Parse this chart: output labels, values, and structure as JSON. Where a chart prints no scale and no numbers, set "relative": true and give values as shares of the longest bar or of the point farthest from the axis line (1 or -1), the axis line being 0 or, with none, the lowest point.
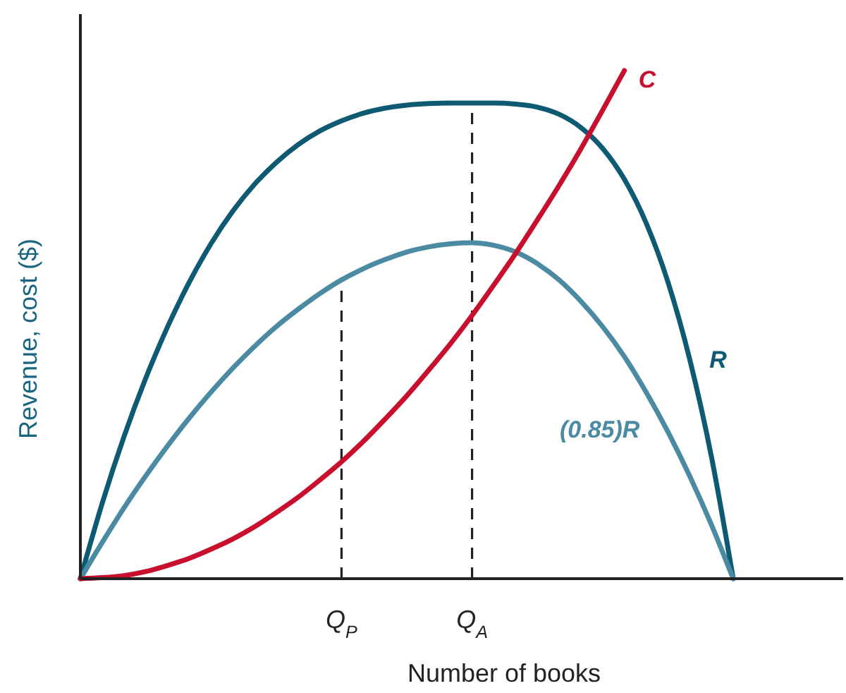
{
  "chart_data": {
    "type": "line",
    "relative": true,
    "xlabel": "Number of books",
    "ylabel": "Revenue, cost ($)",
    "categories": [
      null,
      null,
      null,
      null,
      null,
      null,
      null,
      null,
      null,
      null,
      null,
      null,
      "Q$_{P}$",
      null,
      null,
      null,
      null,
      null,
      "Q$_{A}$",
      null,
      null,
      null,
      null,
      null,
      null,
      null,
      null,
      null,
      null,
      null,
      null
    ],
    "grid": false,
    "legend": false,
    "marker": "none",
    "series": [
      {
        "name": "R",
        "color": "#0e5a73",
        "values": [
          0,
          0.148,
          0.279,
          0.394,
          0.495,
          0.583,
          0.659,
          0.723,
          0.776,
          0.819,
          0.854,
          0.881,
          0.901,
          0.916,
          0.926,
          0.932,
          0.935,
          0.936,
          0.936,
          0.936,
          0.934,
          0.928,
          0.914,
          0.888,
          0.847,
          0.786,
          0.7,
          0.584,
          0.432,
          0.24,
          0
        ]
      },
      {
        "name": "(0.85)R",
        "color": "#4a8aa3",
        "values": [
          0,
          0.071,
          0.139,
          0.202,
          0.261,
          0.316,
          0.367,
          0.414,
          0.457,
          0.496,
          0.53,
          0.561,
          0.588,
          0.61,
          0.628,
          0.643,
          0.653,
          0.659,
          0.661,
          0.656,
          0.643,
          0.62,
          0.588,
          0.546,
          0.496,
          0.437,
          0.367,
          0.289,
          0.202,
          0.106,
          0
        ]
      },
      {
        "name": "C",
        "color": "#c8102e",
        "values": [
          0,
          0.002,
          0.006,
          0.014,
          0.026,
          0.04,
          0.058,
          0.078,
          0.102,
          0.13,
          0.16,
          0.194,
          0.23,
          0.27,
          0.314,
          0.36,
          0.41,
          0.462,
          0.518,
          0.578,
          0.64,
          0.706,
          0.774,
          0.846,
          0.922,
          1.0,
          null,
          null,
          null,
          null,
          null
        ]
      }
    ],
    "ref_lines": [
      {
        "axis": "x",
        "value": "Q$_{P}$",
        "color": "#222222",
        "line_style": "dashed"
      },
      {
        "axis": "x",
        "value": "Q$_{A}$",
        "color": "#222222",
        "line_style": "dashed"
      }
    ]
  }
}
